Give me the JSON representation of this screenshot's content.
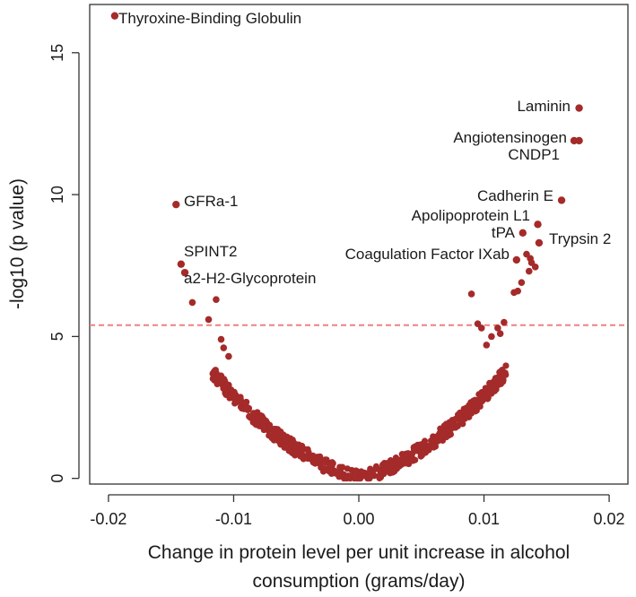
{
  "chart_data": {
    "type": "scatter",
    "title": "",
    "xlabel_lines": [
      "Change in protein level per unit increase in alcohol",
      "consumption (grams/day)"
    ],
    "ylabel": "-log10 (p value)",
    "xlim": [
      -0.0215,
      0.0215
    ],
    "ylim": [
      -0.2,
      16.7
    ],
    "x_ticks": [
      -0.02,
      -0.01,
      0.0,
      0.01,
      0.02
    ],
    "x_tick_labels": [
      "-0.02",
      "-0.01",
      "0.00",
      "0.01",
      "0.02"
    ],
    "y_ticks": [
      0,
      5,
      10,
      15
    ],
    "y_tick_labels": [
      "0",
      "5",
      "10",
      "15"
    ],
    "threshold": 5.4,
    "point_color": "#a52a2a",
    "threshold_color": "#f08080",
    "grid": false,
    "highlighted": [
      {
        "x": -0.0195,
        "y": 16.3,
        "label": "Thyroxine-Binding Globulin"
      },
      {
        "x": -0.0146,
        "y": 9.65,
        "label": "GFRa-1"
      },
      {
        "x": -0.0142,
        "y": 7.55,
        "label": "SPINT2"
      },
      {
        "x": -0.0139,
        "y": 7.25,
        "label": "a2-H2-Glycoprotein"
      },
      {
        "x": 0.0176,
        "y": 13.05,
        "label": "Laminin"
      },
      {
        "x": 0.0172,
        "y": 11.9,
        "label": "Angiotensinogen"
      },
      {
        "x": 0.0176,
        "y": 11.9,
        "label": "CNDP1"
      },
      {
        "x": 0.0162,
        "y": 9.8,
        "label": "Cadherin E"
      },
      {
        "x": 0.0143,
        "y": 8.95,
        "label": "Apolipoprotein L1"
      },
      {
        "x": 0.0131,
        "y": 8.65,
        "label": "tPA"
      },
      {
        "x": 0.0144,
        "y": 8.3,
        "label": "Trypsin 2"
      },
      {
        "x": 0.0126,
        "y": 7.7,
        "label": "Coagulation Factor IXab"
      }
    ],
    "extra_points": [
      [
        -0.0133,
        6.2
      ],
      [
        -0.0114,
        6.3
      ],
      [
        -0.012,
        5.6
      ],
      [
        0.009,
        6.5
      ],
      [
        0.013,
        6.9
      ],
      [
        0.0127,
        6.6
      ],
      [
        0.0136,
        7.3
      ],
      [
        0.0138,
        7.6
      ],
      [
        0.0141,
        7.45
      ],
      [
        0.0134,
        7.9
      ],
      [
        0.0137,
        7.75
      ],
      [
        0.0124,
        6.55
      ],
      [
        0.0116,
        5.5
      ],
      [
        0.0113,
        5.1
      ],
      [
        0.0111,
        5.3
      ],
      [
        0.0106,
        5.0
      ],
      [
        0.0098,
        5.3
      ],
      [
        0.0095,
        5.45
      ],
      [
        0.0102,
        4.7
      ],
      [
        -0.011,
        4.9
      ],
      [
        -0.0108,
        4.6
      ],
      [
        -0.0104,
        4.3
      ]
    ],
    "cloud": {
      "n": 600,
      "shape_coeff": 17000,
      "max_abs_x": 0.0118
    }
  }
}
